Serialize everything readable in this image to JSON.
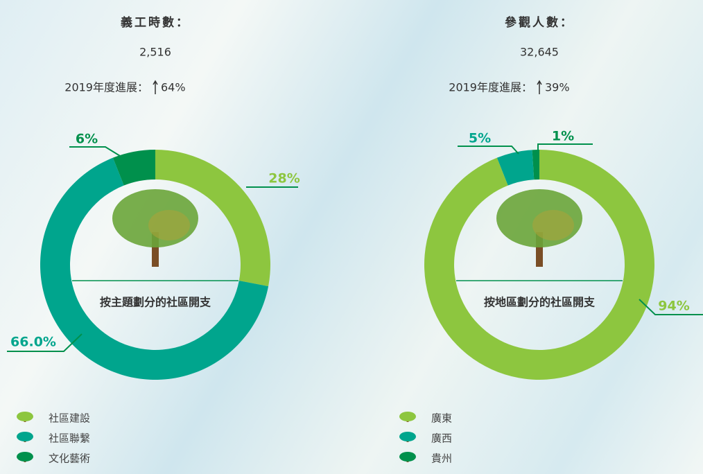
{
  "chart_data": [
    {
      "type": "pie",
      "stat_label": "義工時數：",
      "stat_value": "2,516",
      "progress_label": "2019年度進展：",
      "progress_value": "64%",
      "center_label": "按主題劃分的社區開支",
      "categories": [
        "社區建設",
        "社區聯繫",
        "文化藝術"
      ],
      "values": [
        28,
        66,
        6
      ],
      "value_labels": [
        "28%",
        "66.0%",
        "6%"
      ],
      "colors": [
        "#8dc63f",
        "#00a58d",
        "#00904c"
      ]
    },
    {
      "type": "pie",
      "stat_label": "參觀人數：",
      "stat_value": "32,645",
      "progress_label": "2019年度進展：",
      "progress_value": "39%",
      "center_label": "按地區劃分的社區開支",
      "categories": [
        "廣東",
        "廣西",
        "貴州"
      ],
      "values": [
        94,
        5,
        1
      ],
      "value_labels": [
        "94%",
        "5%",
        "1%"
      ],
      "colors": [
        "#8dc63f",
        "#00a58d",
        "#00904c"
      ]
    }
  ]
}
